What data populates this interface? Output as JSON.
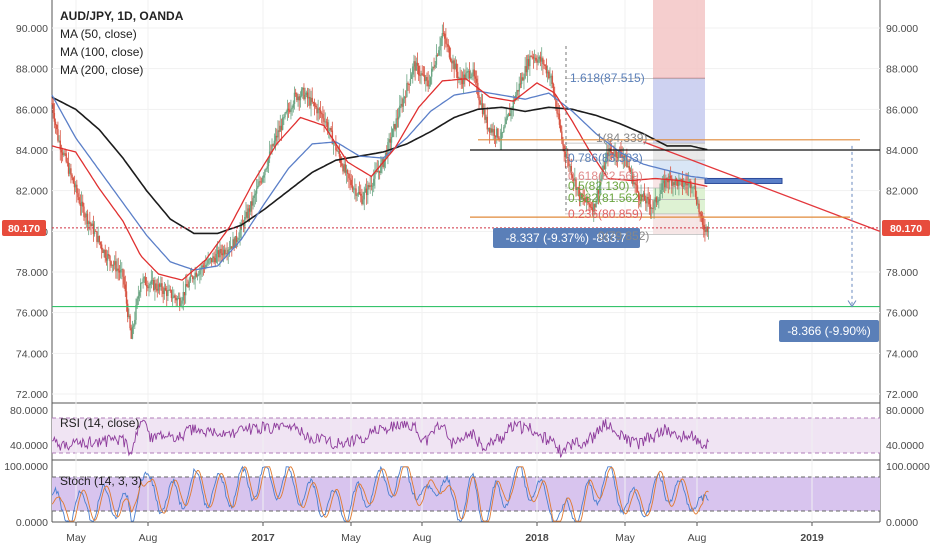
{
  "header": {
    "title": "AUD/JPY, 1D, OANDA",
    "ma50_label": "MA (50, close)",
    "ma100_label": "MA (100, close)",
    "ma200_label": "MA (200, close)"
  },
  "price_badges": {
    "left": "80.170",
    "right": "80.170"
  },
  "measurements": {
    "short": "-8.337 (-9.37%) -833.7",
    "long": "-8.366 (-9.90%)"
  },
  "fib_labels": [
    "1.618(87.515)",
    "1(84.339)",
    "0.786(83.503)",
    "0.618(82.569)",
    "0.5(82.130)",
    "0.382(81.562)",
    "0.236(80.859)",
    "0(79.852)"
  ],
  "rsi_label": "RSI (14, close)",
  "stoch_label": "Stoch (14, 3, 3)",
  "colors": {
    "up_candle": "#6ba583",
    "down_candle": "#d75442",
    "ma50": "#e03030",
    "ma100": "#5b7fc8",
    "ma200": "#1c1c1c",
    "trendline": "#e3373c",
    "support": "#36c36c",
    "resistance": "#e08a3a",
    "rsi_line": "#8e3c9c",
    "badge_red": "#e74c3c",
    "badge_blue": "#5a7fb8"
  },
  "chart_data": {
    "type": "candlestick",
    "symbol": "AUD/JPY",
    "timeframe": "1D",
    "source": "OANDA",
    "x_ticks": [
      "May",
      "Aug",
      "2017",
      "May",
      "Aug",
      "2018",
      "May",
      "Aug",
      "2019"
    ],
    "y_ticks": [
      "90.000",
      "88.000",
      "86.000",
      "84.000",
      "82.000",
      "80.000",
      "78.000",
      "76.000",
      "74.000",
      "72.000"
    ],
    "ylim": [
      71.5,
      91.5
    ],
    "last_price": 80.17,
    "price_path": [
      [
        0,
        86.3
      ],
      [
        5,
        84.6
      ],
      [
        12,
        83.4
      ],
      [
        25,
        81.2
      ],
      [
        45,
        78.9
      ],
      [
        60,
        77.8
      ],
      [
        67,
        74.7
      ],
      [
        75,
        77.6
      ],
      [
        92,
        77.2
      ],
      [
        108,
        76.6
      ],
      [
        120,
        77.9
      ],
      [
        135,
        78.6
      ],
      [
        155,
        79.5
      ],
      [
        170,
        81.5
      ],
      [
        190,
        84.7
      ],
      [
        205,
        86.6
      ],
      [
        212,
        86.8
      ],
      [
        230,
        85.6
      ],
      [
        250,
        82.6
      ],
      [
        262,
        81.6
      ],
      [
        280,
        83.4
      ],
      [
        297,
        86.5
      ],
      [
        306,
        88.2
      ],
      [
        318,
        87.2
      ],
      [
        330,
        89.7
      ],
      [
        345,
        87.4
      ],
      [
        355,
        87.9
      ],
      [
        368,
        85.2
      ],
      [
        380,
        84.6
      ],
      [
        392,
        86.7
      ],
      [
        405,
        88.7
      ],
      [
        415,
        88.3
      ],
      [
        422,
        87.5
      ],
      [
        432,
        84.2
      ],
      [
        447,
        81.6
      ],
      [
        458,
        81.2
      ],
      [
        470,
        83.9
      ],
      [
        483,
        83.8
      ],
      [
        496,
        81.8
      ],
      [
        508,
        81.2
      ],
      [
        520,
        82.6
      ],
      [
        533,
        82.3
      ],
      [
        542,
        82.4
      ],
      [
        550,
        80.2
      ],
      [
        555,
        80.17
      ]
    ],
    "ma50_path": [
      [
        0,
        84.2
      ],
      [
        20,
        83.9
      ],
      [
        40,
        82.1
      ],
      [
        60,
        80.5
      ],
      [
        75,
        78.8
      ],
      [
        90,
        77.9
      ],
      [
        110,
        77.6
      ],
      [
        130,
        78.6
      ],
      [
        150,
        80.2
      ],
      [
        170,
        82.4
      ],
      [
        190,
        84.3
      ],
      [
        210,
        85.6
      ],
      [
        230,
        85.2
      ],
      [
        250,
        83.4
      ],
      [
        270,
        82.7
      ],
      [
        290,
        84.1
      ],
      [
        310,
        86.1
      ],
      [
        330,
        87.4
      ],
      [
        350,
        87.5
      ],
      [
        370,
        86.6
      ],
      [
        390,
        86.4
      ],
      [
        410,
        87.3
      ],
      [
        425,
        86.8
      ],
      [
        440,
        85.4
      ],
      [
        455,
        83.9
      ],
      [
        470,
        82.6
      ],
      [
        490,
        82.5
      ],
      [
        510,
        82.6
      ],
      [
        530,
        82.5
      ],
      [
        555,
        82.2
      ]
    ],
    "ma100_path": [
      [
        0,
        86.7
      ],
      [
        20,
        84.6
      ],
      [
        40,
        83.0
      ],
      [
        60,
        81.4
      ],
      [
        80,
        79.8
      ],
      [
        100,
        78.5
      ],
      [
        120,
        78.1
      ],
      [
        140,
        78.3
      ],
      [
        160,
        79.6
      ],
      [
        180,
        81.4
      ],
      [
        200,
        83.1
      ],
      [
        220,
        84.3
      ],
      [
        240,
        84.4
      ],
      [
        260,
        83.7
      ],
      [
        280,
        83.6
      ],
      [
        300,
        84.6
      ],
      [
        320,
        85.9
      ],
      [
        340,
        86.7
      ],
      [
        360,
        86.9
      ],
      [
        380,
        86.7
      ],
      [
        400,
        86.5
      ],
      [
        420,
        86.8
      ],
      [
        440,
        85.9
      ],
      [
        460,
        84.8
      ],
      [
        480,
        83.9
      ],
      [
        500,
        83.3
      ],
      [
        520,
        83.0
      ],
      [
        540,
        82.7
      ],
      [
        555,
        82.6
      ]
    ],
    "ma200_path": [
      [
        0,
        86.6
      ],
      [
        20,
        86.0
      ],
      [
        40,
        85.0
      ],
      [
        60,
        83.6
      ],
      [
        80,
        82.0
      ],
      [
        100,
        80.6
      ],
      [
        120,
        79.9
      ],
      [
        140,
        79.9
      ],
      [
        160,
        80.3
      ],
      [
        180,
        81.1
      ],
      [
        200,
        82.0
      ],
      [
        220,
        82.9
      ],
      [
        240,
        83.5
      ],
      [
        260,
        83.7
      ],
      [
        280,
        83.9
      ],
      [
        300,
        84.3
      ],
      [
        320,
        84.9
      ],
      [
        340,
        85.6
      ],
      [
        360,
        86.0
      ],
      [
        380,
        86.1
      ],
      [
        400,
        85.9
      ],
      [
        420,
        86.1
      ],
      [
        440,
        86.0
      ],
      [
        460,
        85.7
      ],
      [
        480,
        85.3
      ],
      [
        500,
        84.8
      ],
      [
        520,
        84.2
      ],
      [
        540,
        84.2
      ],
      [
        555,
        84.0
      ]
    ],
    "horizontal_levels": [
      {
        "price": 84.0,
        "kind": "black"
      },
      {
        "price": 84.5,
        "kind": "resistance"
      },
      {
        "price": 80.7,
        "kind": "resistance"
      },
      {
        "price": 76.3,
        "kind": "support"
      }
    ],
    "fib_levels": [
      87.515,
      84.339,
      83.503,
      82.569,
      82.13,
      81.562,
      80.859,
      79.852
    ],
    "trendline": {
      "from": [
        500,
        84.4
      ],
      "to": [
        700,
        80.0
      ]
    },
    "rsi": {
      "ylim": [
        20,
        90
      ],
      "ticks": [
        "80.0000",
        "40.0000"
      ],
      "levels": [
        70,
        30
      ]
    },
    "stoch": {
      "ylim": [
        0,
        100
      ],
      "ticks": [
        "100.0000",
        "0.0000"
      ],
      "levels": [
        80,
        20
      ]
    }
  }
}
